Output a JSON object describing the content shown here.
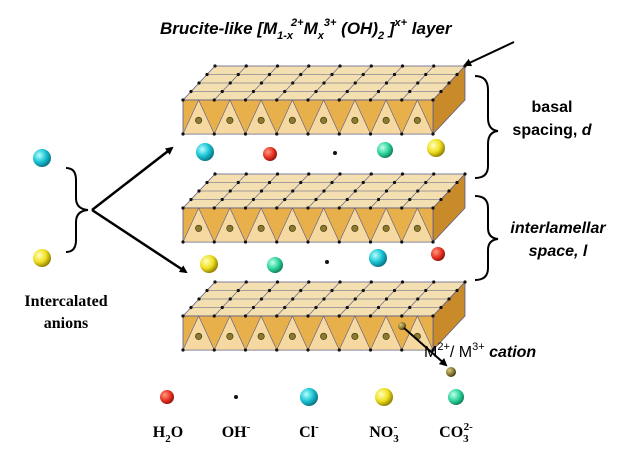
{
  "title": {
    "prefix": "Brucite-like [M",
    "sub1": "1-x",
    "sup1": "2+",
    "m2": "M",
    "sub2": "x",
    "sup2": "3+",
    "oh": " (OH)",
    "sub3": "2",
    "close": " ]",
    "sup3": "x+",
    "suffix": " layer"
  },
  "labels": {
    "basal_line1": "basal",
    "basal_line2": "spacing, ",
    "basal_var": "d",
    "inter_line1": "interlamellar",
    "inter_line2": "space, ",
    "inter_var": "l",
    "anions_line1": "Intercalated",
    "anions_line2": "anions",
    "cation_base": "M",
    "cation_sup1": "2+",
    "cation_mid": "/ M",
    "cation_sup2": "3+",
    "cation_word": " cation"
  },
  "legend": [
    {
      "key": "h2o",
      "base": "H",
      "sub": "2",
      "tail": "O",
      "sup": ""
    },
    {
      "key": "oh",
      "base": "OH",
      "sub": "",
      "tail": "",
      "sup": "-"
    },
    {
      "key": "cl",
      "base": "Cl",
      "sub": "",
      "tail": "",
      "sup": "-"
    },
    {
      "key": "no3",
      "base": "NO",
      "sub": "3",
      "tail": "",
      "sup": "-"
    },
    {
      "key": "co3",
      "base": "CO",
      "sub": "3",
      "tail": "",
      "sup": "2-"
    }
  ],
  "colors": {
    "octahedron_face": "#e8b04a",
    "octahedron_top": "#f3dfb0",
    "octahedron_edge": "#5a5a8a",
    "vertex": "#111111",
    "cation": "#8a7a30",
    "h2o": "#e53020",
    "cl": "#19c4d4",
    "no3": "#f0e020",
    "co3": "#2ed6a0",
    "oh": "#111111"
  }
}
